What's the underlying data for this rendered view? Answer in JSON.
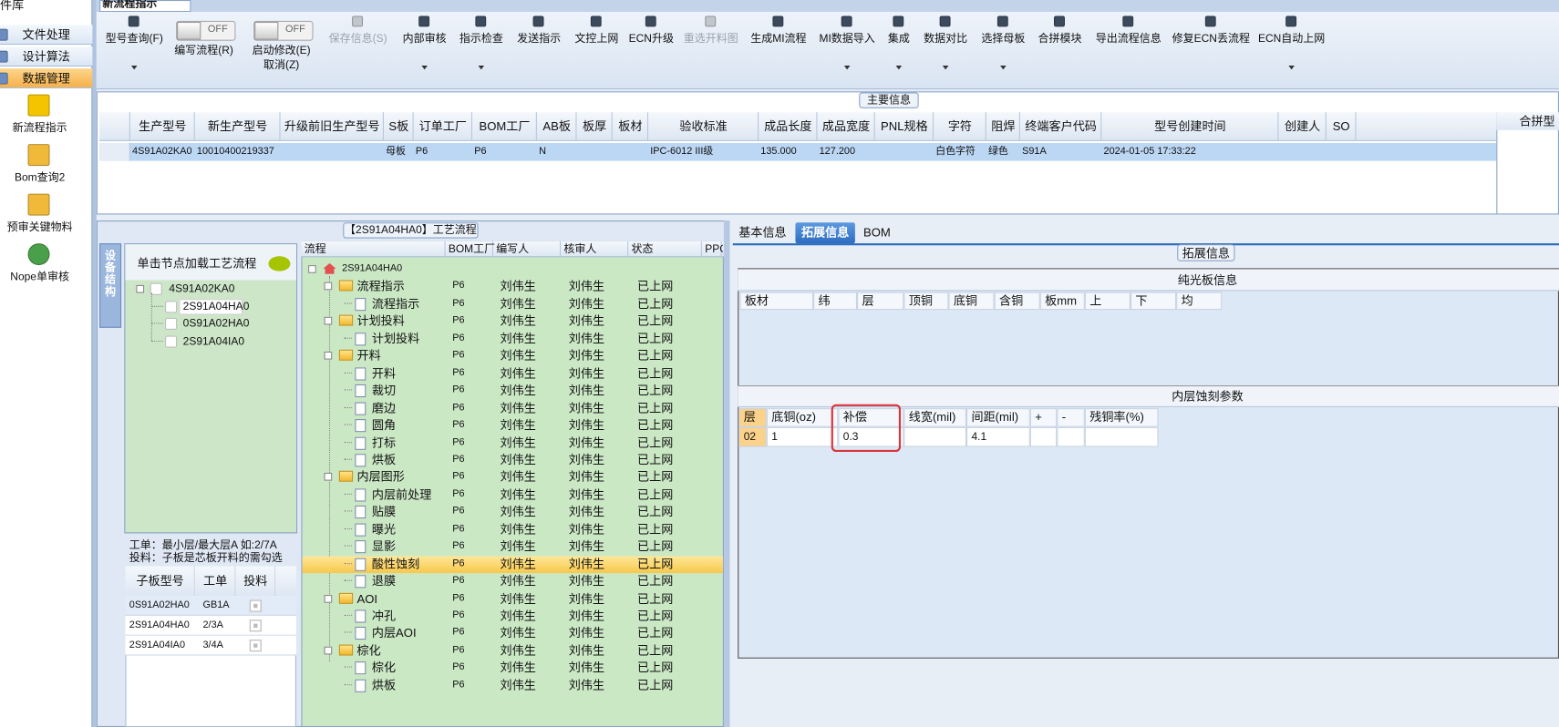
{
  "sidebar": {
    "title": "件库",
    "menu": [
      "文件处理",
      "设计算法",
      "数据管理"
    ],
    "active": 2,
    "tools": [
      "新流程指示",
      "Bom查询2",
      "预审关键物料",
      "Nope单审核"
    ]
  },
  "tab": "新流程指示",
  "toolbar": [
    {
      "label": "型号查询(F)",
      "dropdown": true
    },
    {
      "toggle": "OFF",
      "label": "编写流程(R)"
    },
    {
      "toggle": "OFF",
      "label": "启动修改(E)",
      "label2": "取消(Z)"
    },
    {
      "label": "保存信息(S)",
      "disabled": true
    },
    {
      "label": "内部审核",
      "dropdown": true
    },
    {
      "label": "指示检查",
      "dropdown": true
    },
    {
      "label": "发送指示"
    },
    {
      "label": "文控上网"
    },
    {
      "label": "ECN升级"
    },
    {
      "label": "重选开料图",
      "disabled": true
    },
    {
      "label": "生成MI流程"
    },
    {
      "label": "MI数据导入",
      "dropdown": true
    },
    {
      "label": "集成",
      "dropdown": true
    },
    {
      "label": "数据对比",
      "dropdown": true
    },
    {
      "label": "选择母板",
      "dropdown": true
    },
    {
      "label": "合拼模块"
    },
    {
      "label": "导出流程信息"
    },
    {
      "label": "修复ECN丢流程"
    },
    {
      "label": "ECN自动上网",
      "dropdown": true
    }
  ],
  "main_info": {
    "title": "主要信息",
    "headers": [
      "生产型号",
      "新生产型号",
      "升级前旧生产型号",
      "S板",
      "订单工厂",
      "BOM工厂",
      "AB板",
      "板厚",
      "板材",
      "验收标准",
      "成品长度",
      "成品宽度",
      "PNL规格",
      "字符",
      "阻焊",
      "终端客户代码",
      "型号创建时间",
      "创建人",
      "SO"
    ],
    "row": [
      "4S91A02KA0",
      "10010400219337",
      null,
      "母板",
      "P6",
      "P6",
      "N",
      null,
      null,
      "IPC-6012 III级",
      "135.000",
      "127.200",
      null,
      "白色字符",
      "绿色",
      "S91A",
      "2024-01-05 17:33:22",
      null,
      null
    ],
    "side_header": "合拼型"
  },
  "process": {
    "title": "【2S91A04HA0】工艺流程",
    "side_tab": "设备结构",
    "hint": "单击节点加载工艺流程",
    "tree": {
      "root": "4S91A02KA0",
      "children": [
        "2S91A04HA0",
        "0S91A02HA0",
        "2S91A04IA0"
      ],
      "selected": 0
    },
    "notes": [
      "工单：最小层/最大层A 如:2/7A",
      "投料：子板是芯板开料的需勾选"
    ],
    "sub_table": {
      "headers": [
        "子板型号",
        "工单",
        "投料"
      ],
      "rows": [
        {
          "board": "0S91A02HA0",
          "order": "GB1A",
          "checked": true
        },
        {
          "board": "2S91A04HA0",
          "order": "2/3A",
          "checked": true
        },
        {
          "board": "2S91A04IA0",
          "order": "3/4A",
          "checked": true
        }
      ]
    },
    "flow": {
      "headers": [
        "流程",
        "BOM工厂",
        "编写人",
        "核审人",
        "状态",
        "PPC"
      ],
      "root": "2S91A04HA0",
      "groups": [
        {
          "name": "流程指示",
          "bom": "P6",
          "writer": "刘伟生",
          "reviewer": "刘伟生",
          "status": "已上网",
          "children": [
            {
              "name": "流程指示",
              "bom": "P6",
              "writer": "刘伟生",
              "reviewer": "刘伟生",
              "status": "已上网"
            }
          ]
        },
        {
          "name": "计划投料",
          "bom": "P6",
          "writer": "刘伟生",
          "reviewer": "刘伟生",
          "status": "已上网",
          "children": [
            {
              "name": "计划投料",
              "bom": "P6",
              "writer": "刘伟生",
              "reviewer": "刘伟生",
              "status": "已上网"
            }
          ]
        },
        {
          "name": "开料",
          "bom": "P6",
          "writer": "刘伟生",
          "reviewer": "刘伟生",
          "status": "已上网",
          "children": [
            {
              "name": "开料",
              "bom": "P6",
              "writer": "刘伟生",
              "reviewer": "刘伟生",
              "status": "已上网"
            },
            {
              "name": "裁切",
              "bom": "P6",
              "writer": "刘伟生",
              "reviewer": "刘伟生",
              "status": "已上网"
            },
            {
              "name": "磨边",
              "bom": "P6",
              "writer": "刘伟生",
              "reviewer": "刘伟生",
              "status": "已上网"
            },
            {
              "name": "圆角",
              "bom": "P6",
              "writer": "刘伟生",
              "reviewer": "刘伟生",
              "status": "已上网"
            },
            {
              "name": "打标",
              "bom": "P6",
              "writer": "刘伟生",
              "reviewer": "刘伟生",
              "status": "已上网"
            },
            {
              "name": "烘板",
              "bom": "P6",
              "writer": "刘伟生",
              "reviewer": "刘伟生",
              "status": "已上网"
            }
          ]
        },
        {
          "name": "内层图形",
          "bom": "P6",
          "writer": "刘伟生",
          "reviewer": "刘伟生",
          "status": "已上网",
          "children": [
            {
              "name": "内层前处理",
              "bom": "P6",
              "writer": "刘伟生",
              "reviewer": "刘伟生",
              "status": "已上网"
            },
            {
              "name": "贴膜",
              "bom": "P6",
              "writer": "刘伟生",
              "reviewer": "刘伟生",
              "status": "已上网"
            },
            {
              "name": "曝光",
              "bom": "P6",
              "writer": "刘伟生",
              "reviewer": "刘伟生",
              "status": "已上网"
            },
            {
              "name": "显影",
              "bom": "P6",
              "writer": "刘伟生",
              "reviewer": "刘伟生",
              "status": "已上网"
            },
            {
              "name": "酸性蚀刻",
              "bom": "P6",
              "writer": "刘伟生",
              "reviewer": "刘伟生",
              "status": "已上网",
              "selected": true
            },
            {
              "name": "退膜",
              "bom": "P6",
              "writer": "刘伟生",
              "reviewer": "刘伟生",
              "status": "已上网"
            }
          ]
        },
        {
          "name": "AOI",
          "bom": "P6",
          "writer": "刘伟生",
          "reviewer": "刘伟生",
          "status": "已上网",
          "children": [
            {
              "name": "冲孔",
              "bom": "P6",
              "writer": "刘伟生",
              "reviewer": "刘伟生",
              "status": "已上网"
            },
            {
              "name": "内层AOI",
              "bom": "P6",
              "writer": "刘伟生",
              "reviewer": "刘伟生",
              "status": "已上网"
            }
          ]
        },
        {
          "name": "棕化",
          "bom": "P6",
          "writer": "刘伟生",
          "reviewer": "刘伟生",
          "status": "已上网",
          "children": [
            {
              "name": "棕化",
              "bom": "P6",
              "writer": "刘伟生",
              "reviewer": "刘伟生",
              "status": "已上网"
            },
            {
              "name": "烘板",
              "bom": "P6",
              "writer": "刘伟生",
              "reviewer": "刘伟生",
              "status": "已上网"
            }
          ]
        }
      ]
    }
  },
  "detail": {
    "tabs": [
      "基本信息",
      "拓展信息",
      "BOM"
    ],
    "active": 1,
    "title": "拓展信息",
    "bare_board": {
      "title": "纯光板信息",
      "headers": [
        "板材",
        "纬",
        "层",
        "顶铜",
        "底铜",
        "含铜",
        "板mm",
        "上",
        "下",
        "均"
      ]
    },
    "etch": {
      "title": "内层蚀刻参数",
      "headers": [
        "层",
        "底铜(oz)",
        "补偿",
        "线宽(mil)",
        "间距(mil)",
        "+",
        "-",
        "残铜率(%)"
      ],
      "row": [
        "02",
        "1",
        "0.3",
        null,
        "4.1",
        null,
        null,
        null
      ],
      "highlight_column": 2
    }
  }
}
